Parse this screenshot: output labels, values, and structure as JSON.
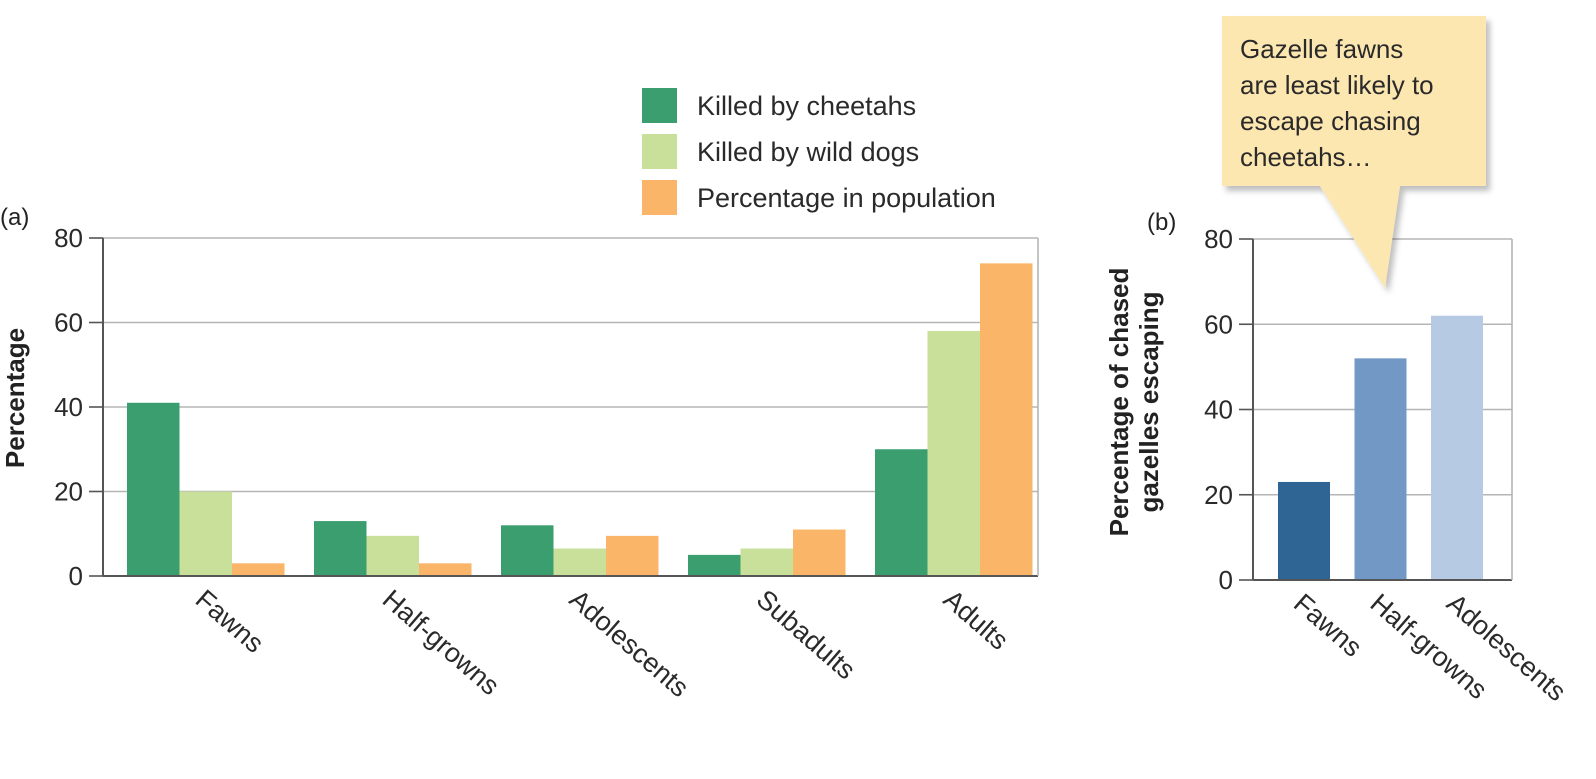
{
  "chart_data": [
    {
      "type": "bar",
      "panel_label": "(a)",
      "categories": [
        "Fawns",
        "Half-growns",
        "Adolescents",
        "Subadults",
        "Adults"
      ],
      "series": [
        {
          "name": "Killed by cheetahs",
          "color": "#3a9e6e",
          "values": [
            41,
            13,
            12,
            5,
            30
          ]
        },
        {
          "name": "Killed by wild dogs",
          "color": "#c8e09a",
          "values": [
            20,
            9.5,
            6.5,
            6.5,
            58
          ]
        },
        {
          "name": "Percentage in population",
          "color": "#fbb568",
          "values": [
            3,
            3,
            9.5,
            11,
            74
          ]
        }
      ],
      "ylabel": "Percentage",
      "ylim": [
        0,
        80
      ],
      "yticks": [
        0,
        20,
        40,
        60,
        80
      ],
      "grid": true,
      "legend": "top-right"
    },
    {
      "type": "bar",
      "panel_label": "(b)",
      "categories": [
        "Fawns",
        "Half-growns",
        "Adolescents"
      ],
      "values": [
        23,
        52,
        62
      ],
      "colors": [
        "#2f6594",
        "#7299c6",
        "#b7cae4"
      ],
      "ylabel": [
        "Percentage of chased",
        "gazelles escaping"
      ],
      "ylim": [
        0,
        80
      ],
      "yticks": [
        0,
        20,
        40,
        60,
        80
      ],
      "grid": true,
      "callout": [
        "Gazelle fawns",
        "are least likely to",
        "escape chasing",
        "cheetahs…"
      ]
    }
  ]
}
